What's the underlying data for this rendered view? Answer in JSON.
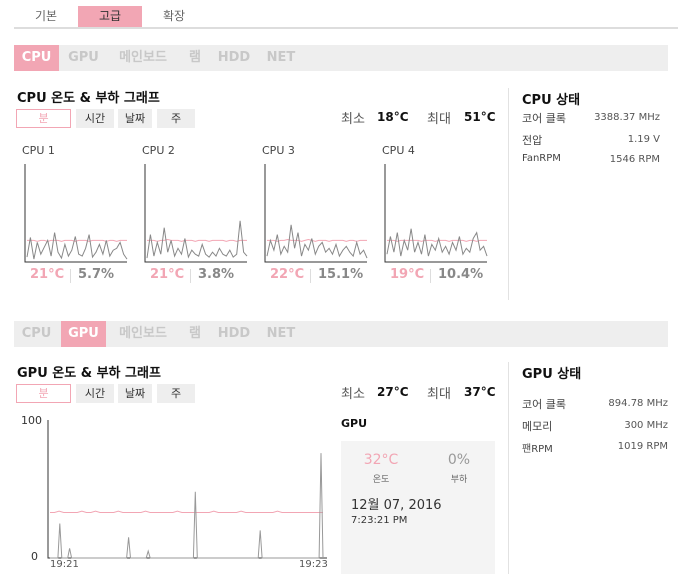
{
  "top_tabs": [
    "기본",
    "고급",
    "확장"
  ],
  "section_tabs": [
    "CPU",
    "GPU",
    "메인보드",
    "램",
    "HDD",
    "NET"
  ],
  "time_ranges": [
    "분",
    "시간",
    "날짜",
    "주"
  ],
  "min_label": "최소",
  "max_label": "최대",
  "cpu": {
    "graph_title": "CPU 온도 & 부하 그래프",
    "min_temp": "18°C",
    "max_temp": "51°C",
    "cores": [
      {
        "name": "CPU 1",
        "temp": "21°C",
        "load": "5.7%"
      },
      {
        "name": "CPU 2",
        "temp": "21°C",
        "load": "3.8%"
      },
      {
        "name": "CPU 3",
        "temp": "22°C",
        "load": "15.1%"
      },
      {
        "name": "CPU 4",
        "temp": "19°C",
        "load": "10.4%"
      }
    ],
    "status_title": "CPU 상태",
    "status": [
      {
        "key": "코어 클록",
        "value": "3388.37 MHz"
      },
      {
        "key": "전압",
        "value": "1.19 V"
      },
      {
        "key": "FanRPM",
        "value": "1546 RPM"
      }
    ]
  },
  "gpu": {
    "graph_title": "GPU 온도 & 부하 그래프",
    "min_temp": "27°C",
    "max_temp": "37°C",
    "card_title": "GPU",
    "card_temp": "32°C",
    "card_temp_label": "온도",
    "card_load": "0%",
    "card_load_label": "부하",
    "card_date": "12월 07, 2016",
    "card_time": "7:23:21 PM",
    "status_title": "GPU 상태",
    "status": [
      {
        "key": "코어 클록",
        "value": "894.78 MHz"
      },
      {
        "key": "메모리",
        "value": "300 MHz"
      },
      {
        "key": "팬RPM",
        "value": "1019 RPM"
      }
    ]
  },
  "chart_data": [
    {
      "type": "line",
      "title": "GPU 온도 & 부하 그래프",
      "ylim": [
        0,
        100
      ],
      "yticks": [
        "100",
        "0"
      ],
      "x_ticks": [
        "19:21",
        "19:23"
      ],
      "series": [
        {
          "color": "#f2a6b4",
          "values": [
            33,
            33,
            34,
            33,
            33,
            33,
            33,
            34,
            33,
            33,
            34,
            33,
            33,
            33,
            33,
            34,
            33,
            33,
            33,
            33,
            33,
            34,
            33,
            33,
            33,
            33,
            33,
            33,
            34,
            33,
            33,
            33,
            33,
            33,
            33,
            33,
            34,
            33,
            33,
            33,
            33,
            33,
            34,
            33,
            33,
            33,
            33,
            33,
            33,
            33,
            34,
            33,
            33,
            33,
            33,
            33,
            33,
            33,
            33,
            33,
            33
          ]
        },
        {
          "color": "#999999",
          "values": [
            0,
            0,
            0,
            0,
            0,
            25,
            0,
            0,
            0,
            0,
            7,
            0,
            0,
            0,
            0,
            0,
            0,
            0,
            0,
            0,
            0,
            0,
            0,
            0,
            0,
            0,
            0,
            0,
            0,
            0,
            0,
            0,
            0,
            0,
            0,
            0,
            0,
            0,
            0,
            0,
            15,
            0,
            0,
            0,
            0,
            0,
            0,
            0,
            0,
            0,
            5,
            0,
            0,
            0,
            0,
            0,
            0,
            0,
            0,
            0,
            0,
            0,
            0,
            0,
            0,
            0,
            0,
            0,
            0,
            0,
            0,
            0,
            0,
            0,
            48,
            0,
            0,
            0,
            0,
            0,
            0,
            0,
            0,
            0,
            0,
            0,
            0,
            0,
            0,
            0,
            0,
            0,
            0,
            0,
            0,
            0,
            0,
            0,
            0,
            0,
            0,
            0,
            0,
            0,
            0,
            0,
            0,
            20,
            0,
            0,
            0,
            0,
            0,
            0,
            0,
            0,
            0,
            0,
            0,
            0,
            0,
            0,
            0,
            0,
            0,
            0,
            0,
            0,
            0,
            0,
            0,
            0,
            0,
            0,
            0,
            0,
            0,
            0,
            76,
            0
          ]
        }
      ]
    },
    {
      "type": "line",
      "title": "CPU 1",
      "ylim": [
        0,
        100
      ],
      "series": [
        {
          "color": "#f2a6b4",
          "values": [
            22,
            22,
            22,
            21,
            22,
            22,
            21,
            22,
            22,
            22,
            21,
            22,
            22,
            22,
            21,
            22,
            22,
            22,
            21,
            22,
            22,
            22,
            22,
            21,
            22,
            22,
            21,
            22,
            22,
            22
          ]
        },
        {
          "color": "#888888",
          "values": [
            5,
            25,
            3,
            20,
            8,
            15,
            22,
            6,
            30,
            10,
            4,
            18,
            6,
            12,
            26,
            8,
            6,
            14,
            28,
            5,
            10,
            18,
            8,
            22,
            6,
            12,
            14,
            20,
            8,
            3
          ]
        }
      ]
    },
    {
      "type": "line",
      "title": "CPU 2",
      "ylim": [
        0,
        100
      ],
      "series": [
        {
          "color": "#f2a6b4",
          "values": [
            22,
            22,
            22,
            21,
            22,
            22,
            23,
            22,
            22,
            22,
            21,
            22,
            22,
            22,
            21,
            22,
            22,
            22,
            21,
            22,
            22,
            22,
            22,
            21,
            22,
            22,
            21,
            22,
            22,
            22
          ]
        },
        {
          "color": "#888888",
          "values": [
            4,
            28,
            6,
            20,
            8,
            35,
            10,
            22,
            6,
            14,
            8,
            24,
            5,
            12,
            8,
            6,
            18,
            8,
            5,
            10,
            6,
            14,
            8,
            6,
            12,
            5,
            8,
            42,
            10,
            6
          ]
        }
      ]
    },
    {
      "type": "line",
      "title": "CPU 3",
      "ylim": [
        0,
        100
      ],
      "series": [
        {
          "color": "#f2a6b4",
          "values": [
            22,
            22,
            22,
            21,
            22,
            22,
            23,
            22,
            22,
            22,
            21,
            22,
            23,
            22,
            21,
            22,
            22,
            22,
            21,
            22,
            22,
            22,
            22,
            21,
            22,
            22,
            21,
            22,
            22,
            22
          ]
        },
        {
          "color": "#888888",
          "values": [
            6,
            22,
            12,
            28,
            8,
            16,
            10,
            38,
            14,
            30,
            6,
            18,
            12,
            24,
            8,
            16,
            20,
            10,
            14,
            8,
            18,
            6,
            12,
            16,
            10,
            6,
            20,
            8,
            12,
            4
          ]
        }
      ]
    },
    {
      "type": "line",
      "title": "CPU 4",
      "ylim": [
        0,
        100
      ],
      "series": [
        {
          "color": "#f2a6b4",
          "values": [
            22,
            22,
            22,
            21,
            22,
            22,
            22,
            22,
            22,
            22,
            21,
            22,
            22,
            22,
            21,
            22,
            22,
            22,
            21,
            22,
            22,
            22,
            22,
            21,
            22,
            22,
            21,
            22,
            22,
            22
          ]
        },
        {
          "color": "#888888",
          "values": [
            8,
            26,
            10,
            30,
            6,
            22,
            12,
            34,
            10,
            20,
            8,
            28,
            6,
            18,
            12,
            24,
            10,
            16,
            8,
            20,
            12,
            26,
            8,
            14,
            10,
            24,
            30,
            12,
            16,
            6
          ]
        }
      ]
    }
  ]
}
